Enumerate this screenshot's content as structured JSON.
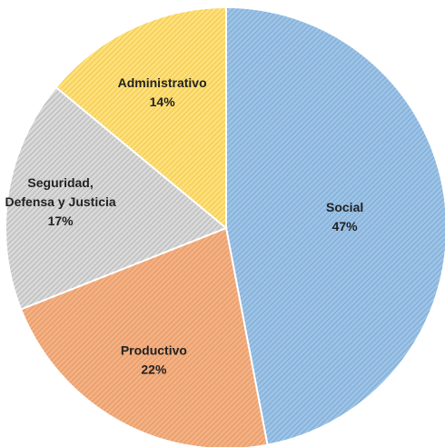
{
  "chart_data": {
    "type": "pie",
    "slices": [
      {
        "label_lines": [
          "Social"
        ],
        "percent_label": "47%",
        "value": 47,
        "color": "#9DC3E6",
        "stripe": "#6E9FCC"
      },
      {
        "label_lines": [
          "Productivo"
        ],
        "percent_label": "22%",
        "value": 22,
        "color": "#F4B183",
        "stripe": "#DD8A55"
      },
      {
        "label_lines": [
          "Seguridad,",
          "Defensa y Justicia"
        ],
        "percent_label": "17%",
        "value": 17,
        "color": "#D9D9D9",
        "stripe": "#A8A8A8"
      },
      {
        "label_lines": [
          "Administrativo"
        ],
        "percent_label": "14%",
        "value": 14,
        "color": "#FFE07A",
        "stripe": "#E6BE3C"
      }
    ],
    "start_angle_deg": 0,
    "direction": "clockwise",
    "legend": "none"
  }
}
